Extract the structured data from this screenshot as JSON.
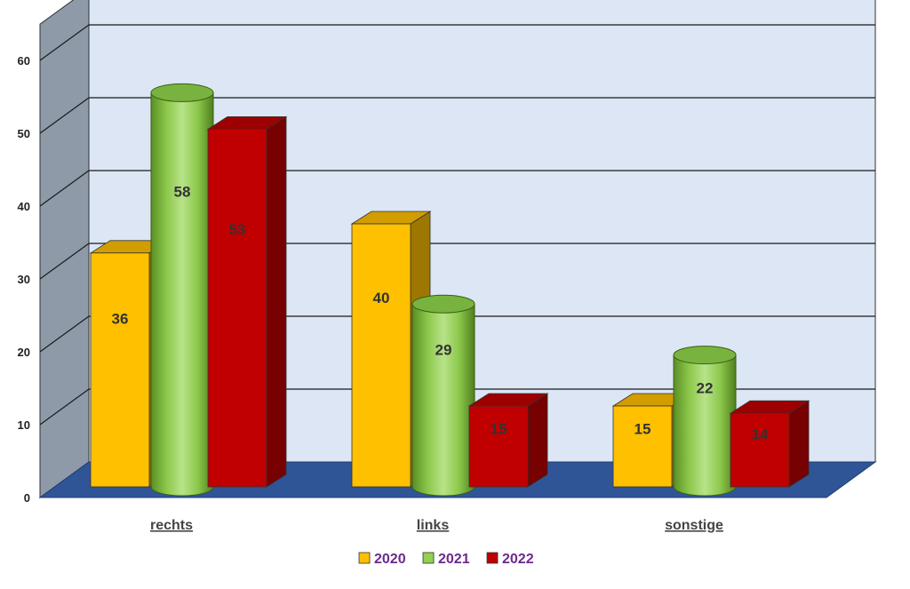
{
  "chart_data": {
    "type": "bar",
    "categories": [
      "rechts",
      "links",
      "sonstige"
    ],
    "series": [
      {
        "name": "2020",
        "values": [
          36,
          40,
          15
        ],
        "color": "#FFC000",
        "shape": "box"
      },
      {
        "name": "2021",
        "values": [
          58,
          29,
          22
        ],
        "color": "#92D050",
        "shape": "cylinder"
      },
      {
        "name": "2022",
        "values": [
          53,
          15,
          14
        ],
        "color": "#C00000",
        "shape": "box"
      }
    ],
    "ylim": [
      0,
      60
    ],
    "yticks": [
      0,
      10,
      20,
      30,
      40,
      50,
      60
    ],
    "grid": true,
    "legend_position": "bottom",
    "three_d": true,
    "colors": {
      "wall": "#DCE6F4",
      "side_wall": "#8E9AA8",
      "floor": "#2F5597",
      "grid": "#1a1a1a"
    }
  }
}
